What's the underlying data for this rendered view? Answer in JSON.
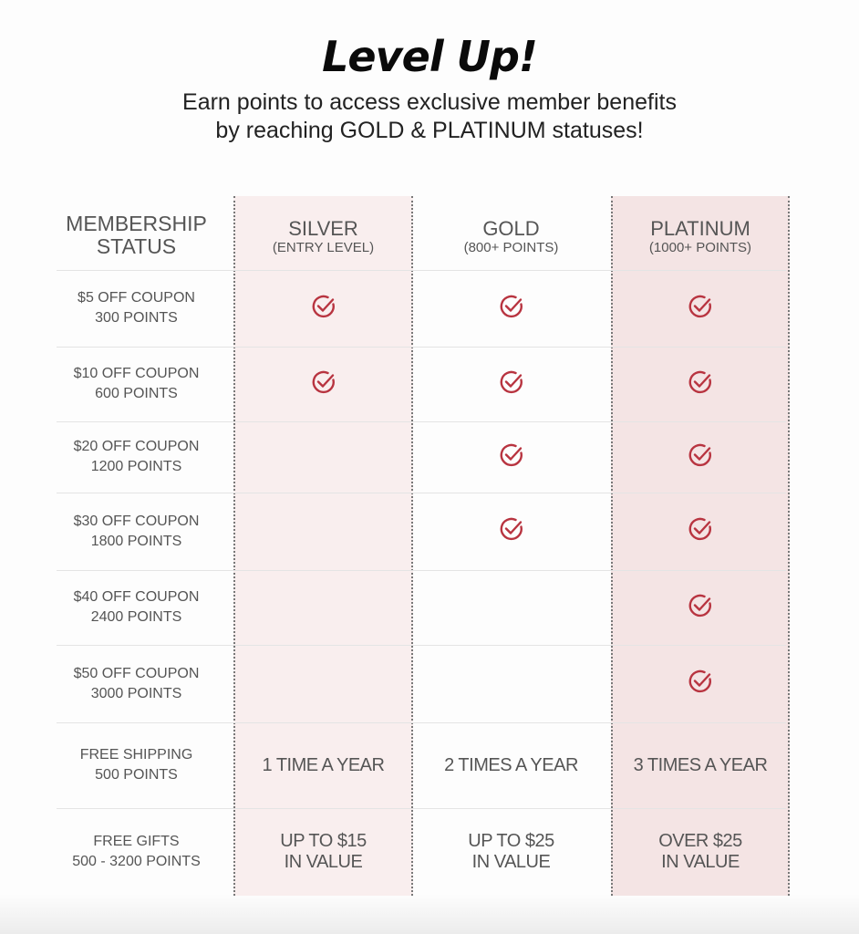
{
  "header": {
    "title": "Level Up!",
    "subtitle_line1": "Earn points to access exclusive member benefits",
    "subtitle_line2": "by reaching GOLD & PLATINUM statuses!"
  },
  "colors": {
    "check": "#b83440",
    "silver_bg": "#f9eeee",
    "platinum_bg": "#f4e4e4",
    "text": "#555555"
  },
  "table": {
    "header_label_line1": "MEMBERSHIP",
    "header_label_line2": "STATUS",
    "tiers": [
      {
        "name": "SILVER",
        "sub": "(ENTRY LEVEL)"
      },
      {
        "name": "GOLD",
        "sub": "(800+ POINTS)"
      },
      {
        "name": "PLATINUM",
        "sub": "(1000+ POINTS)"
      }
    ],
    "rows": [
      {
        "line1": "$5 OFF COUPON",
        "line2": "300 POINTS",
        "checks": [
          true,
          true,
          true
        ]
      },
      {
        "line1": "$10 OFF COUPON",
        "line2": "600 POINTS",
        "checks": [
          true,
          true,
          true
        ]
      },
      {
        "line1": "$20 OFF COUPON",
        "line2": "1200 POINTS",
        "checks": [
          false,
          true,
          true
        ]
      },
      {
        "line1": "$30 OFF COUPON",
        "line2": "1800 POINTS",
        "checks": [
          false,
          true,
          true
        ]
      },
      {
        "line1": "$40 OFF COUPON",
        "line2": "2400 POINTS",
        "checks": [
          false,
          false,
          true
        ]
      },
      {
        "line1": "$50 OFF COUPON",
        "line2": "3000 POINTS",
        "checks": [
          false,
          false,
          true
        ]
      },
      {
        "line1": "FREE SHIPPING",
        "line2": "500 POINTS",
        "values": [
          [
            "1 TIME A YEAR"
          ],
          [
            "2 TIMES A YEAR"
          ],
          [
            "3 TIMES A YEAR"
          ]
        ]
      },
      {
        "line1": "FREE GIFTS",
        "line2": "500 - 3200 POINTS",
        "values": [
          [
            "UP TO $15",
            "IN VALUE"
          ],
          [
            "UP TO $25",
            "IN VALUE"
          ],
          [
            "OVER $25",
            "IN VALUE"
          ]
        ]
      }
    ]
  }
}
